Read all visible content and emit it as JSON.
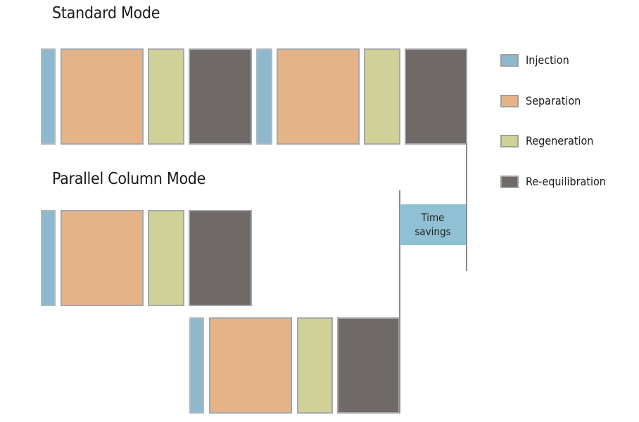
{
  "headings": {
    "standard": "Standard Mode",
    "parallel": "Parallel Column Mode"
  },
  "annotation": {
    "line1": "Time",
    "line2": "savings"
  },
  "legend": [
    {
      "label": "Injection",
      "color": "#8eb9cd"
    },
    {
      "label": "Separation",
      "color": "#e5b388"
    },
    {
      "label": "Regeneration",
      "color": "#cfd197"
    },
    {
      "label": "Re-equilibration",
      "color": "#6f6a68"
    }
  ]
}
